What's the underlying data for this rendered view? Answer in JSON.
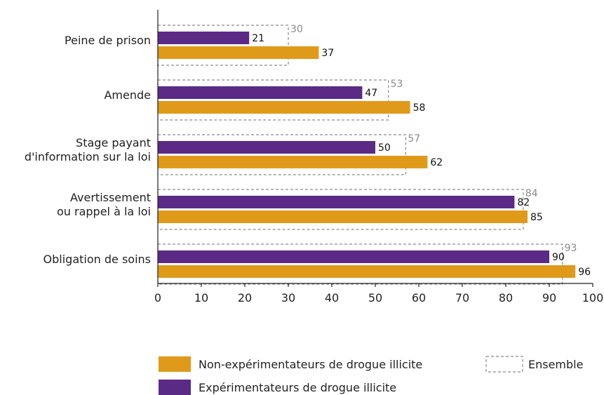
{
  "colors": {
    "non_exp": "#E09A1A",
    "exp": "#5B2A86",
    "ensemble": "#8a8a8a",
    "axis": "#222222"
  },
  "chart_data": {
    "type": "bar",
    "orientation": "horizontal",
    "categories": [
      [
        "Peine de prison"
      ],
      [
        "Amende"
      ],
      [
        "Stage payant",
        "d'information sur la loi"
      ],
      [
        "Avertissement",
        "ou rappel à la loi"
      ],
      [
        "Obligation de soins"
      ]
    ],
    "series": [
      {
        "name": "Expérimentateurs de drogue illicite",
        "values": [
          21,
          47,
          50,
          82,
          90
        ]
      },
      {
        "name": "Non-expérimentateurs de drogue illicite",
        "values": [
          37,
          58,
          62,
          85,
          96
        ]
      },
      {
        "name": "Ensemble",
        "values": [
          30,
          53,
          57,
          84,
          93
        ]
      }
    ],
    "xlim": [
      0,
      100
    ],
    "xticks": [
      0,
      10,
      20,
      30,
      40,
      50,
      60,
      70,
      80,
      90,
      100
    ],
    "legend_placement": "bottom",
    "grid": false
  }
}
